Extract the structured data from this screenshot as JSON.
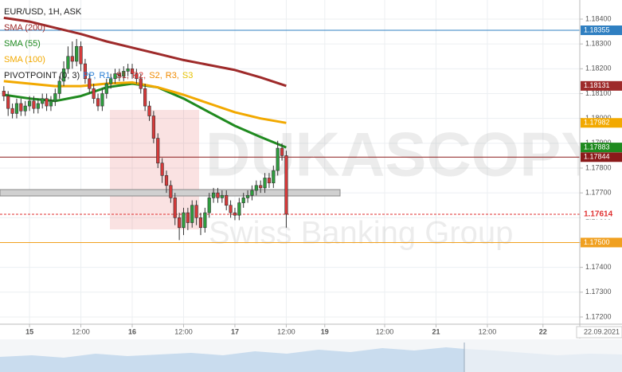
{
  "chart_data": {
    "type": "candlestick",
    "title": "EUR/USD, 1H, ASK",
    "x": [
      -6,
      -5,
      -4,
      -3,
      -2,
      -1,
      0,
      1,
      2,
      3,
      4,
      5,
      6,
      7,
      8,
      9,
      10,
      11,
      12,
      13,
      14,
      15,
      16,
      17,
      18,
      19,
      20,
      21,
      22,
      23,
      24,
      25,
      26,
      27,
      28,
      29,
      30,
      31,
      32,
      33,
      34,
      35,
      36,
      37,
      38,
      39,
      40,
      41,
      42,
      43,
      44,
      45,
      46,
      47,
      48,
      49,
      50,
      51,
      52,
      53,
      54,
      55,
      56,
      57,
      58,
      59,
      60
    ],
    "open": [
      1.1811,
      1.1809,
      1.1804,
      1.1802,
      1.1806,
      1.1803,
      1.1805,
      1.1807,
      1.1804,
      1.1806,
      1.1808,
      1.1805,
      1.1807,
      1.181,
      1.1815,
      1.182,
      1.1825,
      1.1823,
      1.1829,
      1.1822,
      1.1816,
      1.1812,
      1.1808,
      1.1805,
      1.181,
      1.1814,
      1.1816,
      1.1818,
      1.1817,
      1.1819,
      1.182,
      1.1818,
      1.1816,
      1.1812,
      1.1805,
      1.1801,
      1.1792,
      1.1782,
      1.1777,
      1.1773,
      1.1768,
      1.176,
      1.1756,
      1.1762,
      1.1758,
      1.1765,
      1.176,
      1.1756,
      1.1762,
      1.1768,
      1.177,
      1.1768,
      1.1769,
      1.1765,
      1.1762,
      1.1761,
      1.1766,
      1.1768,
      1.1769,
      1.1771,
      1.1773,
      1.1772,
      1.1776,
      1.1774,
      1.1779,
      1.1788,
      1.1785
    ],
    "high": [
      1.1813,
      1.1811,
      1.1806,
      1.1808,
      1.1808,
      1.1807,
      1.1809,
      1.1809,
      1.1808,
      1.181,
      1.181,
      1.1809,
      1.1812,
      1.1817,
      1.1823,
      1.1829,
      1.1831,
      1.1832,
      1.1831,
      1.1824,
      1.1818,
      1.1814,
      1.181,
      1.1812,
      1.1816,
      1.1818,
      1.182,
      1.182,
      1.1821,
      1.1822,
      1.1822,
      1.182,
      1.1818,
      1.1814,
      1.1807,
      1.1803,
      1.1794,
      1.1784,
      1.1779,
      1.1775,
      1.177,
      1.1762,
      1.1764,
      1.1764,
      1.1767,
      1.1767,
      1.1762,
      1.1764,
      1.177,
      1.1772,
      1.1772,
      1.1771,
      1.1771,
      1.1767,
      1.1764,
      1.1768,
      1.177,
      1.1771,
      1.1773,
      1.1775,
      1.1775,
      1.1778,
      1.1778,
      1.1781,
      1.1791,
      1.179,
      1.1787
    ],
    "low": [
      1.1807,
      1.1801,
      1.18,
      1.18,
      1.1801,
      1.1801,
      1.1803,
      1.1802,
      1.1802,
      1.1804,
      1.1803,
      1.1803,
      1.1805,
      1.1808,
      1.1813,
      1.1818,
      1.182,
      1.1821,
      1.1819,
      1.1814,
      1.181,
      1.1806,
      1.1803,
      1.1803,
      1.1808,
      1.1812,
      1.1814,
      1.1815,
      1.1815,
      1.1817,
      1.1816,
      1.1814,
      1.181,
      1.1803,
      1.1799,
      1.179,
      1.178,
      1.1774,
      1.177,
      1.1766,
      1.1757,
      1.1751,
      1.1753,
      1.1755,
      1.1756,
      1.1757,
      1.1753,
      1.1754,
      1.176,
      1.1766,
      1.1766,
      1.1766,
      1.1763,
      1.176,
      1.1759,
      1.1759,
      1.1764,
      1.1766,
      1.1767,
      1.1769,
      1.177,
      1.177,
      1.1772,
      1.1772,
      1.1777,
      1.1783,
      1.1756
    ],
    "close": [
      1.1809,
      1.1804,
      1.1802,
      1.1806,
      1.1803,
      1.1805,
      1.1807,
      1.1804,
      1.1806,
      1.1808,
      1.1805,
      1.1807,
      1.181,
      1.1815,
      1.182,
      1.1825,
      1.1823,
      1.1829,
      1.1822,
      1.1816,
      1.1812,
      1.1808,
      1.1805,
      1.181,
      1.1814,
      1.1816,
      1.1818,
      1.1817,
      1.1819,
      1.182,
      1.1818,
      1.1816,
      1.1812,
      1.1805,
      1.1801,
      1.1792,
      1.1782,
      1.1777,
      1.1773,
      1.1768,
      1.176,
      1.1756,
      1.1762,
      1.1758,
      1.1765,
      1.176,
      1.1756,
      1.1762,
      1.1768,
      1.177,
      1.1768,
      1.1769,
      1.1765,
      1.1762,
      1.1761,
      1.1766,
      1.1768,
      1.1769,
      1.1771,
      1.1773,
      1.1772,
      1.1776,
      1.1774,
      1.1779,
      1.1788,
      1.1785,
      1.17614
    ],
    "up_color": "#2e9e3e",
    "down_color": "#d63a3a",
    "series": [
      {
        "name": "SMA (200)",
        "color": "#9e2a2a",
        "x": [
          -6,
          0,
          6,
          12,
          18,
          24,
          30,
          36,
          42,
          48,
          54,
          60
        ],
        "values": [
          1.18405,
          1.1839,
          1.18365,
          1.1834,
          1.1831,
          1.18285,
          1.1826,
          1.18235,
          1.18215,
          1.18195,
          1.18165,
          1.18131
        ]
      },
      {
        "name": "SMA (55)",
        "color": "#1f8a1f",
        "x": [
          -6,
          0,
          6,
          12,
          18,
          24,
          30,
          36,
          42,
          48,
          54,
          60
        ],
        "values": [
          1.18095,
          1.1808,
          1.1807,
          1.1809,
          1.18125,
          1.1814,
          1.18125,
          1.1808,
          1.18025,
          1.1797,
          1.17925,
          1.17883
        ]
      },
      {
        "name": "SMA (100)",
        "color": "#f2a900",
        "x": [
          -6,
          0,
          6,
          12,
          18,
          24,
          30,
          36,
          42,
          48,
          54,
          60
        ],
        "values": [
          1.1815,
          1.1814,
          1.1813,
          1.1813,
          1.1814,
          1.18145,
          1.18125,
          1.18095,
          1.1806,
          1.18025,
          1.18,
          1.17982
        ]
      }
    ],
    "pivot": {
      "name": "PIVOTPOINT (0, 3)",
      "levels": [
        {
          "name": "PP,",
          "color": "#2a7fd4"
        },
        {
          "name": "R1,",
          "color": "#2a7fd4"
        },
        {
          "name": "S1,",
          "color": "#9e2a2a"
        },
        {
          "name": "R2,",
          "color": "#d63a3a"
        },
        {
          "name": "S2,",
          "color": "#f08a00"
        },
        {
          "name": "R3,",
          "color": "#f08a00"
        },
        {
          "name": "S3",
          "color": "#e6c200"
        }
      ]
    },
    "levels": [
      {
        "value": 1.18355,
        "color": "#2f7fc1",
        "style": "solid"
      },
      {
        "value": 1.17844,
        "color": "#8b1a1a",
        "style": "solid"
      },
      {
        "value": 1.17614,
        "color": "#e03030",
        "style": "dashed"
      },
      {
        "value": 1.175,
        "label": "1.17500",
        "color": "#f0a020",
        "style": "solid"
      }
    ],
    "xlim": [
      -6.9,
      128.6
    ],
    "ylim": [
      1.17171,
      1.18477
    ],
    "xticks": [
      {
        "value": 0,
        "label": "15"
      },
      {
        "value": 12,
        "label": "12:00"
      },
      {
        "value": 24,
        "label": "16"
      },
      {
        "value": 36,
        "label": "12:00"
      },
      {
        "value": 48,
        "label": "17"
      },
      {
        "value": 60,
        "label": "12:00"
      },
      {
        "value": 69,
        "label": "19"
      },
      {
        "value": 83,
        "label": "12:00"
      },
      {
        "value": 95,
        "label": "21"
      },
      {
        "value": 107,
        "label": "12:00"
      },
      {
        "value": 120,
        "label": "22"
      }
    ],
    "yticks": [
      {
        "value": 1.184,
        "label": "1.18400"
      },
      {
        "value": 1.183,
        "label": "1.18300"
      },
      {
        "value": 1.182,
        "label": "1.18200"
      },
      {
        "value": 1.181,
        "label": "1.18100"
      },
      {
        "value": 1.18,
        "label": "1.18000"
      },
      {
        "value": 1.179,
        "label": "1.17900"
      },
      {
        "value": 1.178,
        "label": "1.17800"
      },
      {
        "value": 1.177,
        "label": "1.17700"
      },
      {
        "value": 1.176,
        "label": "1.17600"
      },
      {
        "value": 1.175,
        "label": "1.17500"
      },
      {
        "value": 1.174,
        "label": "1.17400"
      },
      {
        "value": 1.173,
        "label": "1.17300"
      },
      {
        "value": 1.172,
        "label": "1.17200"
      }
    ],
    "grid": true,
    "watermark": [
      "DUKASCOPY",
      "Swiss Banking Group"
    ],
    "cursor_date": "22.09.2021"
  }
}
